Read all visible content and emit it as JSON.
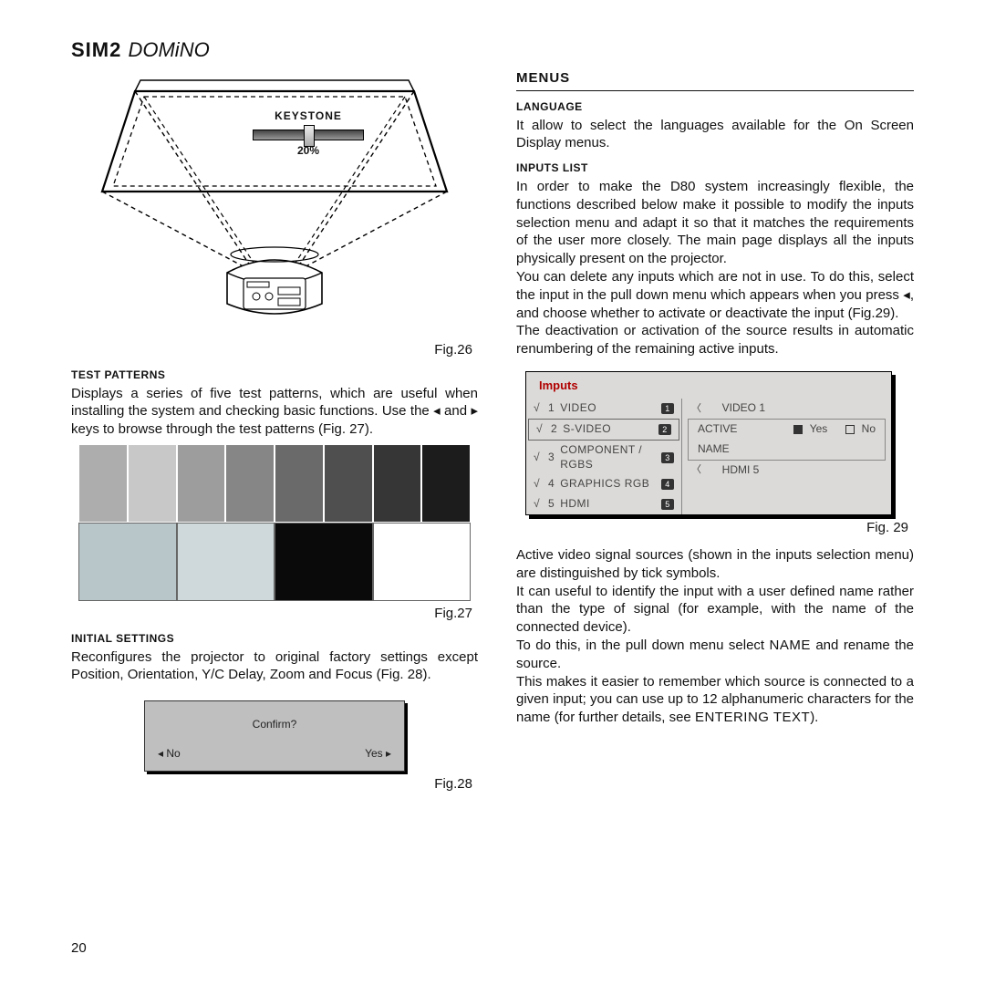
{
  "brand": {
    "bold": "SIM2",
    "italic": "DOMiNO"
  },
  "page_number": "20",
  "fig26": {
    "caption": "Fig.26",
    "keystone_label": "KEYSTONE",
    "keystone_value": "20%",
    "outer_stroke": "#000000",
    "dash_stroke": "#000000"
  },
  "left": {
    "test_patterns_heading": "Test patterns",
    "test_patterns_text": "Displays a series of five test patterns, which are useful when installing the system and checking basic functions. Use the ◂ and ▸ keys to browse through the test patterns (Fig. 27).",
    "fig27_caption": "Fig.27",
    "patterns_row1": [
      "#adadad",
      "#c8c8c8",
      "#9d9d9d",
      "#868686",
      "#6a6a6a",
      "#4f4f4f",
      "#363636",
      "#1c1c1c"
    ],
    "patterns_row2": [
      "#b9c6c9",
      "#cfd9db",
      "#0a0a0a",
      "#ffffff"
    ],
    "patterns_row2_borders": [
      "#666",
      "#666",
      "#666",
      "#666"
    ],
    "initial_settings_heading": "Initial settings",
    "initial_settings_text": "Reconfigures the projector to original factory settings except Position, Orientation, Y/C Delay, Zoom and Focus (Fig. 28).",
    "confirm": {
      "question": "Confirm?",
      "no": "◂ No",
      "yes": "Yes ▸"
    },
    "fig28_caption": "Fig.28"
  },
  "right": {
    "menus_heading": "Menus",
    "language_heading": "Language",
    "language_text": "It allow to select the languages available for the On Screen Display menus.",
    "inputs_list_heading": "Inputs list",
    "inputs_list_text1": "In order to make the D80 system increasingly flexible, the functions described below make it possible to modify the inputs selection menu and adapt it so that it matches the requirements of the user more closely. The main page displays all the inputs physically present on the projector.",
    "inputs_list_text2": "You can delete any inputs which are not in use. To do this, select the input in the pull down menu which appears when you press ◂, and choose whether to activate or deactivate the input (Fig.29).",
    "inputs_list_text3": "The deactivation or activation of the source results in automatic renumbering of the remaining active inputs.",
    "inputs_panel": {
      "title": "Imputs",
      "rows": [
        {
          "tick": "√",
          "num": "1",
          "label": "VIDEO",
          "badge": "1"
        },
        {
          "tick": "√",
          "num": "2",
          "label": "S-VIDEO",
          "badge": "2",
          "selected": true
        },
        {
          "tick": "√",
          "num": "3",
          "label": "COMPONENT / RGBS",
          "badge": "3"
        },
        {
          "tick": "√",
          "num": "4",
          "label": "GRAPHICS RGB",
          "badge": "4"
        },
        {
          "tick": "√",
          "num": "5",
          "label": "HDMI",
          "badge": "5"
        }
      ],
      "right_rows": {
        "r1": "VIDEO 1",
        "active_label": "ACTIVE",
        "yes": "Yes",
        "no": "No",
        "name_label": "NAME",
        "r5": "HDMI 5"
      }
    },
    "fig29_caption": "Fig. 29",
    "after_text1": "Active video signal sources (shown in the inputs selection menu) are distinguished by tick symbols.",
    "after_text2": "It can useful to identify the input with a user defined name rather than the type of signal (for example, with the name of the connected device).",
    "after_text3_a": "To do this, in the pull down menu select ",
    "after_text3_name": "NAME",
    "after_text3_b": " and rename the source.",
    "after_text4_a": "This makes it easier to remember which source is connected to a given input; you can use up to 12 alphanumeric characters for the name (for further details, see  ",
    "after_text4_entering": "ENTERING TEXT",
    "after_text4_b": ")."
  }
}
